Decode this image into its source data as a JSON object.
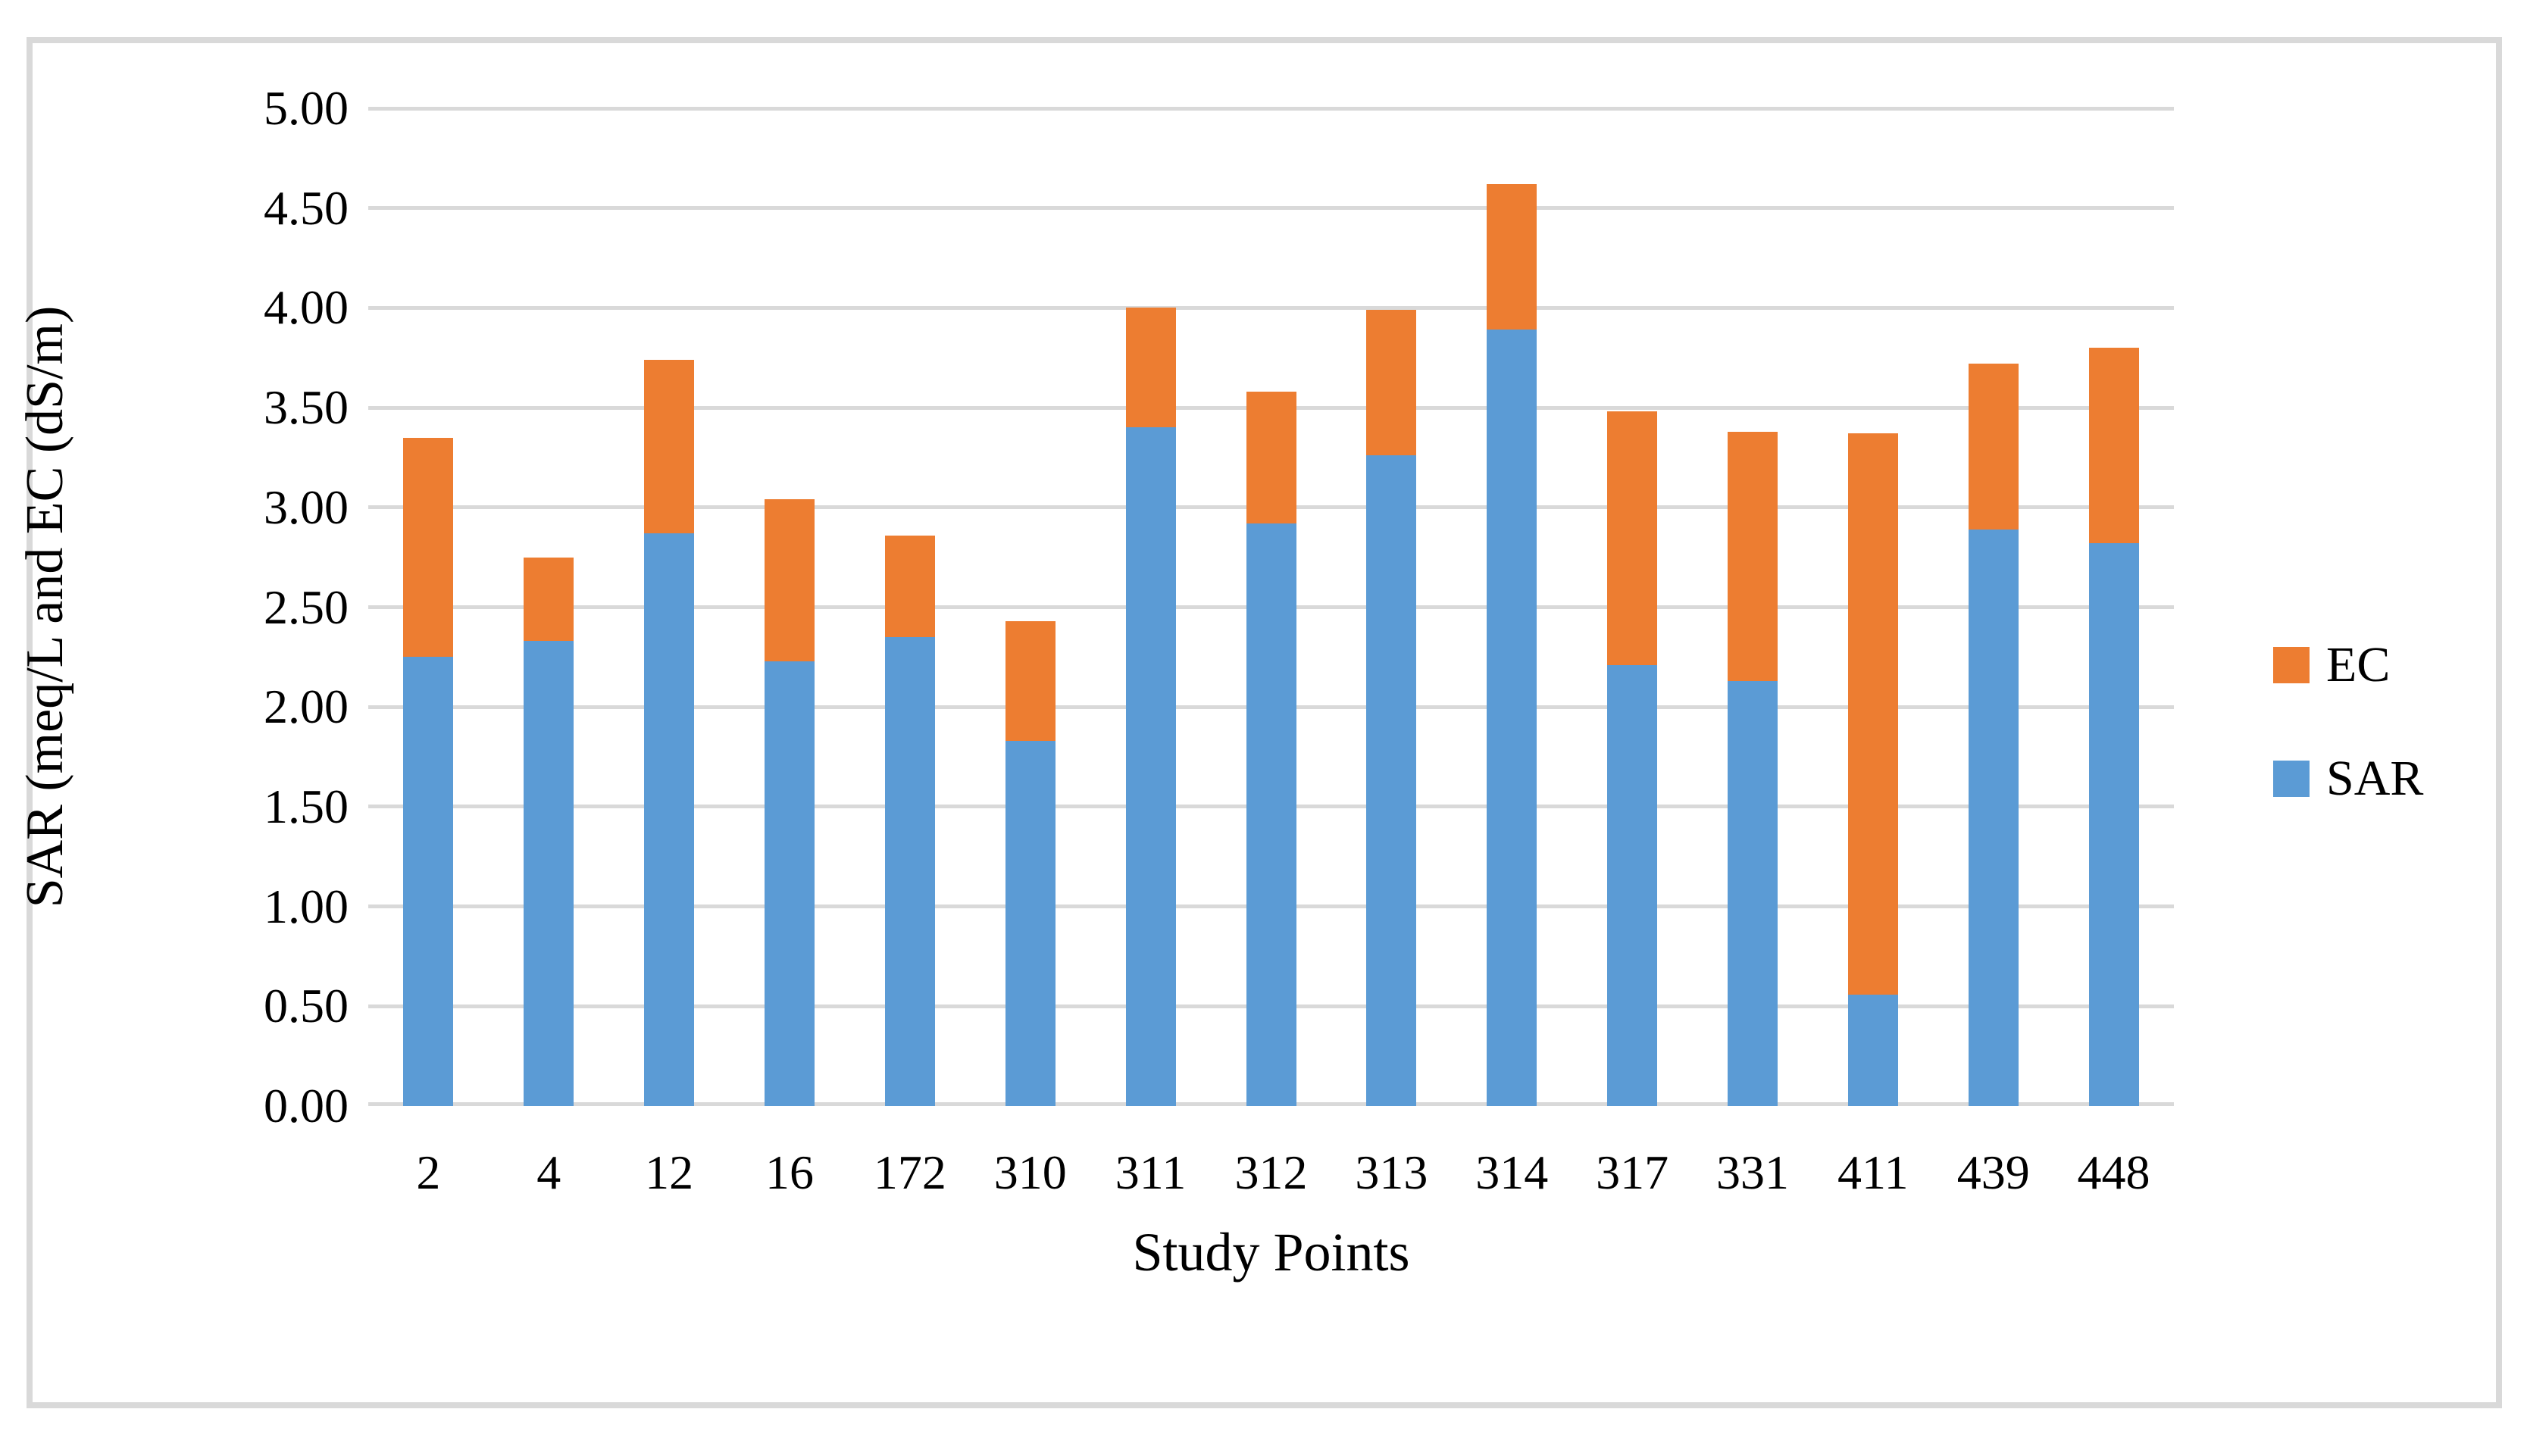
{
  "figure": {
    "background": "#FFFFFF",
    "border_color": "#D9D9D9",
    "text_color": "#000000"
  },
  "chart_data": {
    "type": "bar",
    "stacked": true,
    "title": "",
    "xlabel": "Study Points",
    "ylabel": "SAR (meq/L and EC (dS/m)",
    "categories": [
      "2",
      "4",
      "12",
      "16",
      "172",
      "310",
      "311",
      "312",
      "313",
      "314",
      "317",
      "331",
      "411",
      "439",
      "448"
    ],
    "series": [
      {
        "name": "SAR",
        "color": "#5B9BD5",
        "values": [
          2.25,
          2.33,
          2.87,
          2.23,
          2.35,
          1.83,
          3.4,
          2.92,
          3.26,
          3.89,
          2.21,
          2.13,
          0.56,
          2.89,
          2.82
        ]
      },
      {
        "name": "EC",
        "color": "#ED7D31",
        "values": [
          1.1,
          0.42,
          0.87,
          0.81,
          0.51,
          0.6,
          0.6,
          0.66,
          0.73,
          0.73,
          1.27,
          1.25,
          2.81,
          0.83,
          0.98
        ]
      }
    ],
    "stack_totals": [
      3.35,
      2.75,
      3.74,
      3.04,
      2.86,
      2.43,
      4.0,
      3.58,
      3.99,
      4.62,
      3.48,
      3.38,
      3.37,
      3.72,
      3.8
    ],
    "ylim": [
      0,
      5
    ],
    "ytick_step": 0.5,
    "ytick_labels": [
      "5.00",
      "4.50",
      "4.00",
      "3.50",
      "3.00",
      "2.50",
      "2.00",
      "1.50",
      "1.00",
      "0.50",
      "0.00"
    ],
    "grid": true,
    "gridline_color": "#D9D9D9",
    "legend": {
      "position": "right",
      "entries": [
        {
          "label": "EC",
          "color": "#ED7D31"
        },
        {
          "label": "SAR",
          "color": "#5B9BD5"
        }
      ]
    }
  }
}
